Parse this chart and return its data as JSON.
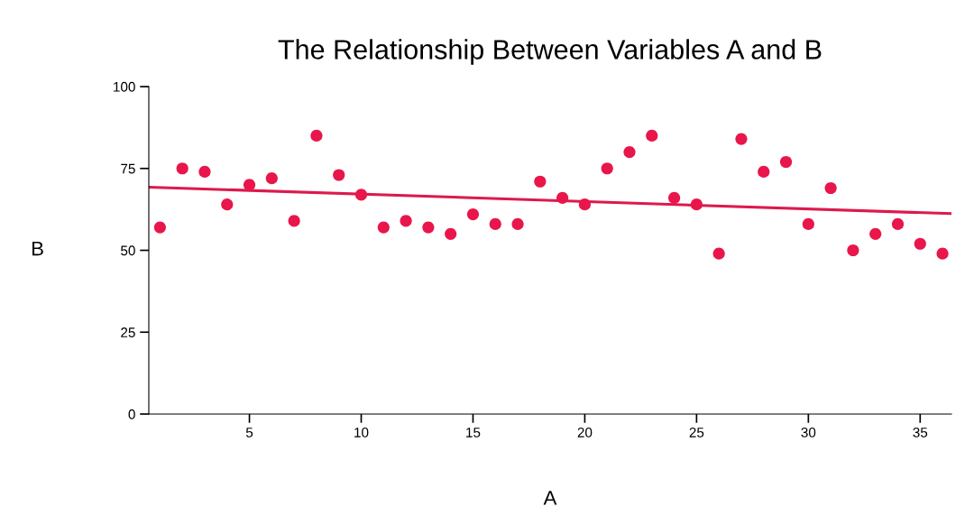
{
  "chart_data": {
    "type": "scatter",
    "title": "The Relationship Between Variables A and B",
    "xlabel": "A",
    "ylabel": "B",
    "x": [
      1,
      2,
      3,
      4,
      5,
      6,
      7,
      8,
      9,
      10,
      11,
      12,
      13,
      14,
      15,
      16,
      17,
      18,
      19,
      20,
      21,
      22,
      23,
      24,
      25,
      26,
      27,
      28,
      29,
      30,
      31,
      32,
      33,
      34,
      35,
      36
    ],
    "series": [
      {
        "color": "#e8164a",
        "values": [
          57,
          75,
          74,
          64,
          70,
          72,
          59,
          85,
          73,
          67,
          57,
          59,
          57,
          55,
          61,
          58,
          58,
          71,
          66,
          64,
          75,
          80,
          85,
          66,
          64,
          49,
          84,
          74,
          77,
          58,
          69,
          50,
          55,
          58,
          52,
          49
        ]
      },
      {
        "type": "line",
        "marker": "none",
        "color": "#dc1a4c",
        "x": [
          0.5,
          36.4
        ],
        "values": [
          69.3,
          61.2
        ]
      }
    ],
    "marker": "circle",
    "xlim": [
      0.5,
      36.4
    ],
    "ylim": [
      0,
      100
    ],
    "xticks": [
      5,
      10,
      15,
      20,
      25,
      30,
      35
    ],
    "yticks": [
      0,
      25,
      50,
      75,
      100
    ],
    "grid": false,
    "legend": false
  }
}
